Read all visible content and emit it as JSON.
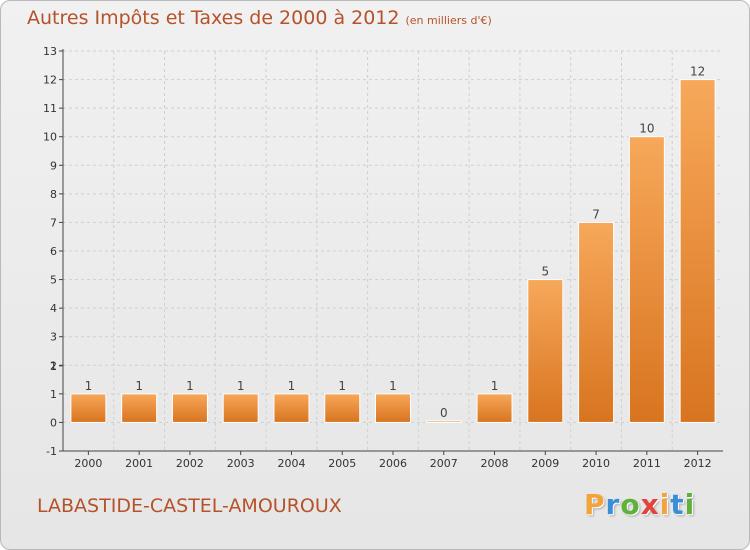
{
  "header": {
    "title": "Autres Impôts et Taxes de 2000 à 2012",
    "subtitle": "(en milliers d'€)"
  },
  "footer": {
    "commune": "LABASTIDE-CASTEL-AMOUROUX",
    "brand_letters": [
      "P",
      "r",
      "o",
      "x",
      "i",
      "t",
      "i"
    ],
    "brand_colors": [
      "#f2a33a",
      "#3a8dd8",
      "#5fb13a",
      "#e0433a",
      "#f2a33a",
      "#3a8dd8",
      "#5fb13a"
    ]
  },
  "colors": {
    "text_accent": "#b5522a",
    "bar_light": "#f7a85a",
    "bar_dark": "#d8741f",
    "grid": "#cfcfcf",
    "axis": "#444444"
  },
  "chart_data": {
    "type": "bar",
    "categories": [
      "2000",
      "2001",
      "2002",
      "2003",
      "2004",
      "2005",
      "2006",
      "2007",
      "2008",
      "2009",
      "2010",
      "2011",
      "2012"
    ],
    "values": [
      1,
      1,
      1,
      1,
      1,
      1,
      1,
      0,
      1,
      5,
      7,
      10,
      12
    ],
    "data_labels": [
      "1",
      "1",
      "1",
      "1",
      "1",
      "1",
      "1",
      "0",
      "1",
      "5",
      "7",
      "10",
      "12"
    ],
    "yticks": [
      "-1",
      "0",
      "1",
      "1",
      "2",
      "3",
      "4",
      "5",
      "6",
      "7",
      "8",
      "9",
      "10",
      "11",
      "12",
      "13"
    ],
    "ylim": [
      -1,
      13
    ],
    "title": "Autres Impôts et Taxes de 2000 à 2012",
    "grid": true
  }
}
